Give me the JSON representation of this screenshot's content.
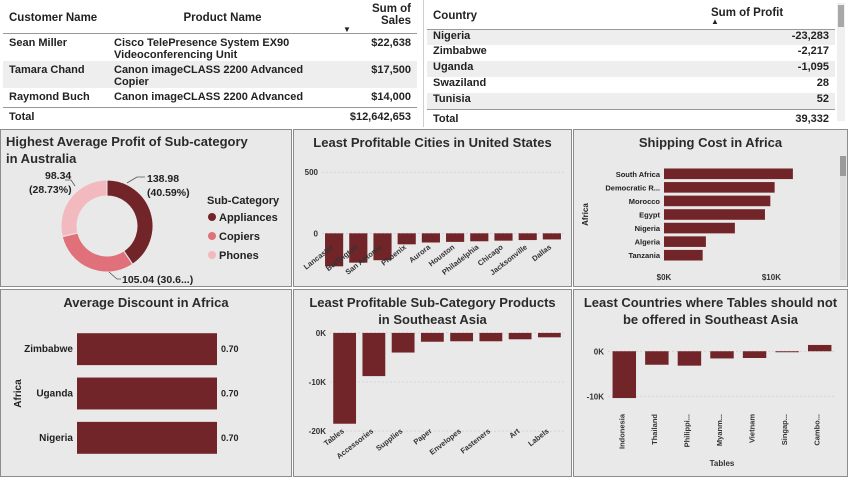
{
  "sales_table": {
    "headers": [
      "Customer Name",
      "Product Name",
      "Sum of Sales"
    ],
    "rows": [
      {
        "customer": "Sean Miller",
        "product_line1": "Cisco TelePresence System EX90",
        "product_line2": "Videoconferencing Unit",
        "sales": "$22,638"
      },
      {
        "customer": "Tamara Chand",
        "product_line1": "Canon imageCLASS 2200 Advanced",
        "product_line2": "Copier",
        "sales": "$17,500"
      },
      {
        "customer": "Raymond Buch",
        "product_line1": "Canon imageCLASS 2200 Advanced",
        "product_line2": "Copier",
        "sales": "$14,000"
      }
    ],
    "total_label": "Total",
    "total_value": "$12,642,653"
  },
  "profit_table": {
    "headers": [
      "Country",
      "Sum of Profit"
    ],
    "rows": [
      {
        "country": "Nigeria",
        "profit": "-23,283"
      },
      {
        "country": "Zimbabwe",
        "profit": "-2,217"
      },
      {
        "country": "Uganda",
        "profit": "-1,095"
      },
      {
        "country": "Swaziland",
        "profit": "28"
      },
      {
        "country": "Tunisia",
        "profit": "52"
      }
    ],
    "total_label": "Total",
    "total_value": "39,332"
  },
  "colors": {
    "dark": "#722529",
    "mid": "#e0707a",
    "light": "#f2b9be",
    "panel": "#e9e9e9",
    "border": "#8c8c8c"
  },
  "chart_data": [
    {
      "id": "donut",
      "type": "pie",
      "title": "Highest Average Profit of Sub-category in Australia",
      "legend_title": "Sub-Category",
      "legend_position": "right",
      "slices": [
        {
          "name": "Appliances",
          "value": 138.98,
          "label": "138.98",
          "pct": "(40.59%)"
        },
        {
          "name": "Copiers",
          "value": 105.04,
          "label": "105.04 (30.6...)",
          "pct": ""
        },
        {
          "name": "Phones",
          "value": 98.34,
          "label": "98.34",
          "pct": "(28.73%)"
        }
      ]
    },
    {
      "id": "cities",
      "type": "bar",
      "title": "Least Profitable Cities in United States",
      "categories": [
        "Lancaster",
        "Burlington",
        "San Antonio",
        "Phoenix",
        "Aurora",
        "Houston",
        "Philadelphia",
        "Chicago",
        "Jacksonville",
        "Dallas"
      ],
      "values": [
        -270,
        -240,
        -220,
        -90,
        -75,
        -70,
        -65,
        -60,
        -55,
        -50
      ],
      "ylim": [
        -300,
        600
      ],
      "yticks": [
        "500",
        "0"
      ]
    },
    {
      "id": "shipping",
      "type": "bar",
      "orientation": "horizontal",
      "title": "Shipping Cost in Africa",
      "ylabel": "Africa",
      "categories": [
        "South Africa",
        "Democratic R...",
        "Morocco",
        "Egypt",
        "Nigeria",
        "Algeria",
        "Tanzania"
      ],
      "values": [
        12000,
        10300,
        9900,
        9400,
        6600,
        3900,
        3600
      ],
      "xlim": [
        0,
        13500
      ],
      "xticks": [
        "$0K",
        "$10K"
      ]
    },
    {
      "id": "discount",
      "type": "bar",
      "orientation": "horizontal",
      "title": "Average Discount in Africa",
      "ylabel": "Africa",
      "categories": [
        "Zimbabwe",
        "Uganda",
        "Nigeria"
      ],
      "values": [
        0.7,
        0.7,
        0.7
      ],
      "labels": [
        "0.70",
        "0.70",
        "0.70"
      ],
      "xlim": [
        0,
        0.7
      ]
    },
    {
      "id": "subcat",
      "type": "bar",
      "title": "Least Profitable Sub-Category Products in Southeast Asia",
      "categories": [
        "Tables",
        "Accessories",
        "Supplies",
        "Paper",
        "Envelopes",
        "Fasteners",
        "Art",
        "Labels"
      ],
      "values": [
        -18500,
        -8800,
        -4000,
        -1800,
        -1700,
        -1700,
        -1300,
        -900
      ],
      "ylim": [
        -21000,
        1000
      ],
      "yticks": [
        "0K",
        "-10K",
        "-20K"
      ]
    },
    {
      "id": "countries",
      "type": "bar",
      "title": "Least Countries where Tables should not be offered in Southeast Asia",
      "xlabel": "Tables",
      "categories": [
        "Indonesia",
        "Thailand",
        "Philippi...",
        "Myanm...",
        "Vietnam",
        "Singap...",
        "Cambo..."
      ],
      "values": [
        -10400,
        -3000,
        -3200,
        -1600,
        -1500,
        -200,
        1400
      ],
      "ylim": [
        -11500,
        2500
      ],
      "yticks": [
        "0K",
        "-10K"
      ]
    }
  ]
}
